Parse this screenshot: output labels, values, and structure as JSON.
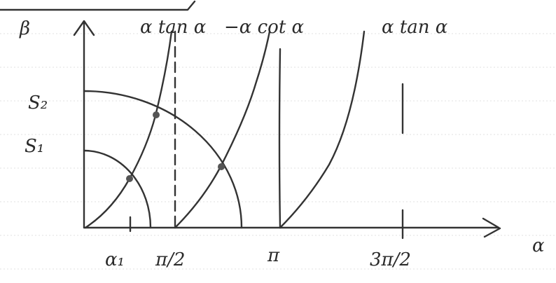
{
  "y_axis_label": "β",
  "x_axis_label": "α",
  "curve_labels": [
    "α tan α",
    "−α cot α",
    "α tan α"
  ],
  "radius_labels": [
    "S₂",
    "S₁"
  ],
  "x_tick_labels": [
    "α₁",
    "π/2",
    "π",
    "3π/2"
  ]
}
